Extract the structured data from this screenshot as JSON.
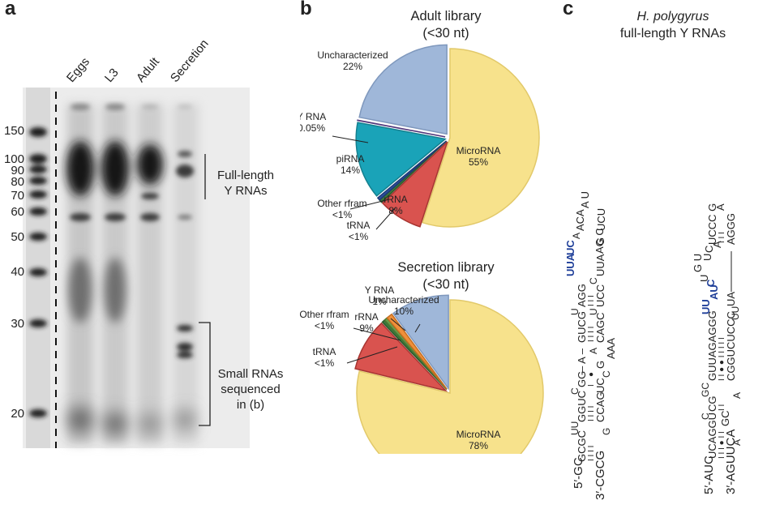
{
  "panel_a": {
    "letter": "a",
    "lanes": [
      "Eggs",
      "L3",
      "Adult",
      "Secretion"
    ],
    "markers": [
      "150",
      "100",
      "90",
      "80",
      "70",
      "60",
      "50",
      "40",
      "30",
      "20"
    ],
    "bracket_top": [
      "Full-length",
      "Y RNAs"
    ],
    "bracket_bottom": [
      "Small RNAs",
      "sequenced",
      "in (b)"
    ]
  },
  "panel_b": {
    "letter": "b",
    "adult_title": [
      "Adult library",
      "(<30 nt)"
    ],
    "secretion_title": [
      "Secretion library",
      "(<30 nt)"
    ]
  },
  "panel_c": {
    "letter": "c",
    "title_italic": "H. polygyrus",
    "title_rest": "full-length Y RNAs"
  },
  "chart_data": [
    {
      "type": "pie",
      "title": "Adult library (<30 nt)",
      "slices": [
        {
          "label": "MicroRNA",
          "value": 55,
          "display": "55%",
          "color": "#f7e28c"
        },
        {
          "label": "rRNA",
          "value": 8,
          "display": "8%",
          "color": "#d9534f"
        },
        {
          "label": "tRNA",
          "value": 0.5,
          "display": "<1%",
          "color": "#3c7a3c"
        },
        {
          "label": "Other rfram",
          "value": 0.5,
          "display": "<1%",
          "color": "#2b4f9e"
        },
        {
          "label": "piRNA",
          "value": 14,
          "display": "14%",
          "color": "#1aa3b8"
        },
        {
          "label": "Y RNA",
          "value": 0.05,
          "display": "0.05%",
          "color": "#6b4aa0"
        },
        {
          "label": "Uncharacterized",
          "value": 22,
          "display": "22%",
          "color": "#9fb7d9"
        }
      ]
    },
    {
      "type": "pie",
      "title": "Secretion library (<30 nt)",
      "slices": [
        {
          "label": "MicroRNA",
          "value": 78,
          "display": "78%",
          "color": "#f7e28c"
        },
        {
          "label": "rRNA",
          "value": 9,
          "display": "9%",
          "color": "#d9534f"
        },
        {
          "label": "tRNA",
          "value": 0.5,
          "display": "<1%",
          "color": "#3c7a3c"
        },
        {
          "label": "Other rfram",
          "value": 0.5,
          "display": "<1%",
          "color": "#6aa04a"
        },
        {
          "label": "Y RNA",
          "value": 1,
          "display": "1%",
          "color": "#f0903a"
        },
        {
          "label": "Uncharacterized",
          "value": 10,
          "display": "10%",
          "color": "#9fb7d9"
        }
      ]
    }
  ],
  "rna1": {
    "five_prime": "5′-GC",
    "three_prime": "3′-CGCG",
    "top_main": "GCGC",
    "top_sub1": "UU",
    "top_mid": "GGUC",
    "top_sub2": "C",
    "top_gg": "GG",
    "top_dash": "– A –",
    "top_gucg": "GUCG",
    "top_u": "U",
    "top_agg": "AGG",
    "loop_blue1": "UUA",
    "loop_blue2": "UC",
    "loop_a": "A",
    "loop_aca": "ACA",
    "loop_au": "A U",
    "loop_g": "G",
    "loop_ucu": "UCU",
    "bot_g": "G",
    "bot_ccag": "CCAG",
    "bot_uc": "UC",
    "bot_g2": "G",
    "bot_a": "A",
    "bot_cagc": "CAGC",
    "bot_u": "U",
    "bot_ucc": "UCC",
    "bot_c": "C",
    "bot_uua": "UUA",
    "bot_agc": "AG C",
    "tail": "AAA",
    "c_sub": "C"
  },
  "rna2": {
    "five_prime": "5′-AUC",
    "three_prime": "3′-AGUUCA",
    "top1": "UCAGGU",
    "top_c": "C",
    "top_cg": "CG",
    "top_gc": "GC",
    "top_main": "GUUAGAGGG",
    "loop_blue1": "UU",
    "loop_blue2": "AU",
    "loop_c": "C",
    "loop_u": "U",
    "loop_gu": "G U",
    "loop_u2": "U",
    "loop_c2": "C",
    "loop_a": "A",
    "loop_ucccg": "UCCC G",
    "loop_a2": "A",
    "loop_aggg": "AGGG",
    "bot_a": "A",
    "bot_gc": "GC",
    "bot_a2": "A",
    "bot_cgg": "CGGUCUCCC",
    "bot_uu": "UU",
    "bot_ua": "UA"
  }
}
